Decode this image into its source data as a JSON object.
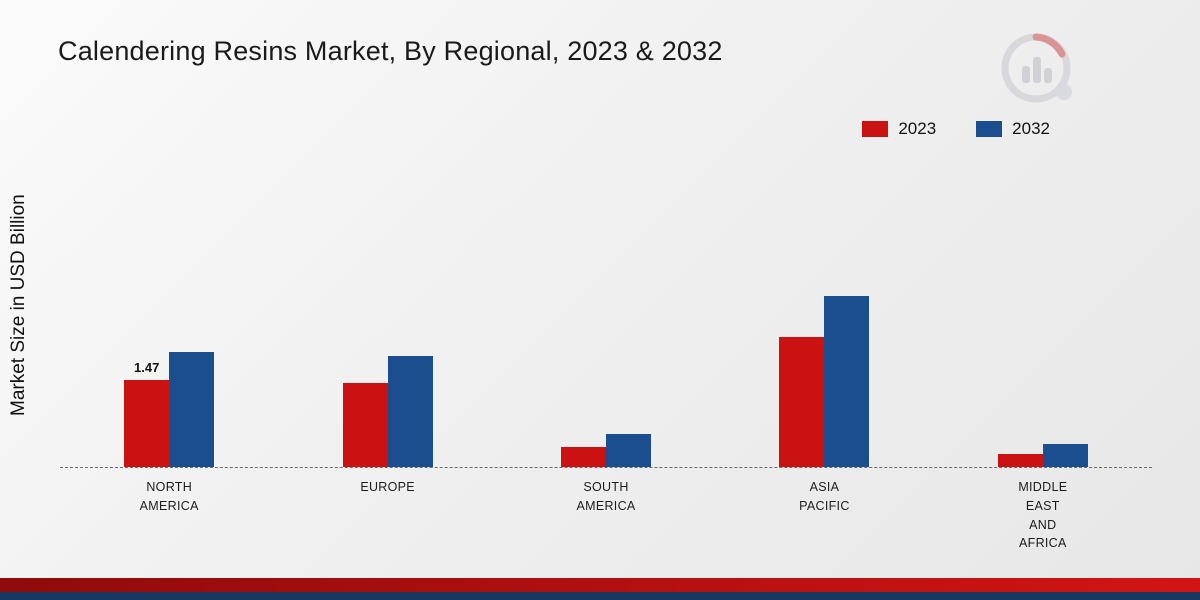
{
  "title": "Calendering Resins Market, By Regional, 2023 & 2032",
  "ylabel": "Market Size in USD Billion",
  "colors": {
    "series_2023": "#cb1212",
    "series_2032": "#1a4e8e",
    "footer_red_band_start": "#8f0b0b",
    "footer_red_band_end": "#d31414",
    "footer_navy_band": "#17375e",
    "baseline_dash": "#6b6b6b"
  },
  "chart_data": {
    "type": "bar",
    "title": "Calendering Resins Market, By Regional, 2023 & 2032",
    "xlabel": "",
    "ylabel": "Market Size in USD Billion",
    "ylim": [
      0,
      3
    ],
    "grid": false,
    "legend_position": "top-right",
    "baseline_style": "dashed",
    "categories": [
      "NORTH AMERICA",
      "EUROPE",
      "SOUTH AMERICA",
      "ASIA PACIFIC",
      "MIDDLE EAST AND AFRICA"
    ],
    "tick_labels": [
      "NORTH\nAMERICA",
      "EUROPE",
      "SOUTH\nAMERICA",
      "ASIA\nPACIFIC",
      "MIDDLE\nEAST\nAND\nAFRICA"
    ],
    "series": [
      {
        "name": "2023",
        "color": "#cb1212",
        "values": [
          1.47,
          1.42,
          0.34,
          2.2,
          0.22
        ]
      },
      {
        "name": "2032",
        "color": "#1a4e8e",
        "values": [
          1.95,
          1.88,
          0.56,
          2.9,
          0.39
        ]
      }
    ],
    "annotations": [
      {
        "series": "2023",
        "category": "NORTH AMERICA",
        "text": "1.47"
      }
    ]
  }
}
